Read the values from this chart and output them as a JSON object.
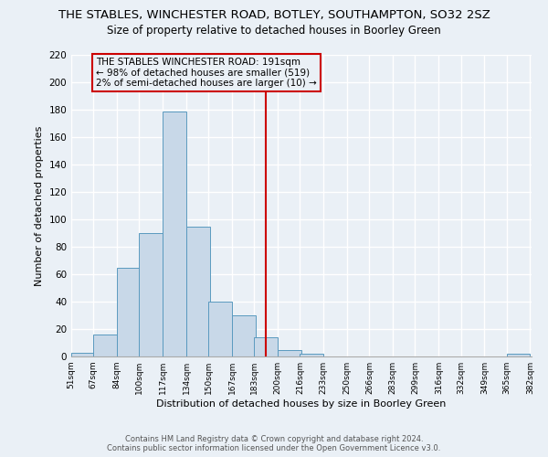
{
  "title": "THE STABLES, WINCHESTER ROAD, BOTLEY, SOUTHAMPTON, SO32 2SZ",
  "subtitle": "Size of property relative to detached houses in Boorley Green",
  "xlabel": "Distribution of detached houses by size in Boorley Green",
  "ylabel": "Number of detached properties",
  "bar_left_edges": [
    51,
    67,
    84,
    100,
    117,
    134,
    150,
    167,
    183,
    200,
    216,
    233,
    250,
    266,
    283,
    299,
    316,
    332,
    349,
    365
  ],
  "bar_heights": [
    3,
    16,
    65,
    90,
    179,
    95,
    40,
    30,
    14,
    5,
    2,
    0,
    0,
    0,
    0,
    0,
    0,
    0,
    0,
    2
  ],
  "bin_width": 17,
  "bar_color": "#c8d8e8",
  "bar_edge_color": "#5a9abf",
  "tick_labels": [
    "51sqm",
    "67sqm",
    "84sqm",
    "100sqm",
    "117sqm",
    "134sqm",
    "150sqm",
    "167sqm",
    "183sqm",
    "200sqm",
    "216sqm",
    "233sqm",
    "250sqm",
    "266sqm",
    "283sqm",
    "299sqm",
    "316sqm",
    "332sqm",
    "349sqm",
    "365sqm",
    "382sqm"
  ],
  "vline_x": 191,
  "vline_color": "#cc0000",
  "ylim": [
    0,
    220
  ],
  "yticks": [
    0,
    20,
    40,
    60,
    80,
    100,
    120,
    140,
    160,
    180,
    200,
    220
  ],
  "annotation_line1": "THE STABLES WINCHESTER ROAD: 191sqm",
  "annotation_line2": "← 98% of detached houses are smaller (519)",
  "annotation_line3": "2% of semi-detached houses are larger (10) →",
  "annotation_box_color": "#cc0000",
  "footer_line1": "Contains HM Land Registry data © Crown copyright and database right 2024.",
  "footer_line2": "Contains public sector information licensed under the Open Government Licence v3.0.",
  "bg_color": "#eaf0f6",
  "grid_color": "#ffffff",
  "title_fontsize": 9.5,
  "subtitle_fontsize": 8.5,
  "ylabel_fontsize": 8,
  "xlabel_fontsize": 8
}
